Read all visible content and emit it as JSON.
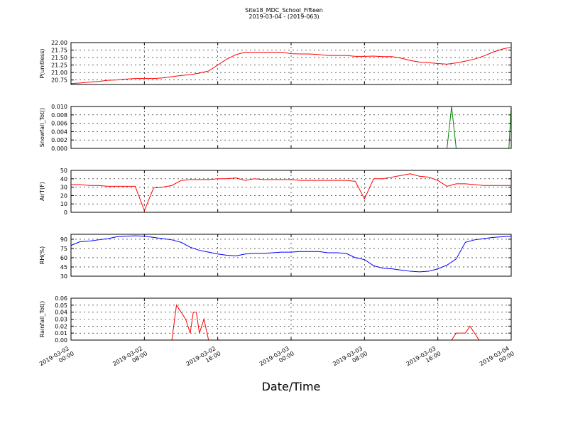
{
  "title": "Site18_MDC_School_Fifteen",
  "subtitle": "2019-03-04 - (2019-063)",
  "xlabel": "Date/Time",
  "chart_data": [
    {
      "type": "line",
      "ylabel": "P(unitless)",
      "color": "#ff0000",
      "grid": true,
      "xlim": [
        "2019-03-02 00:00",
        "2019-03-04 00:00"
      ],
      "ylim": [
        20.6,
        22.0
      ],
      "yticks": [
        20.75,
        {
          "value": 21.0,
          "label": "21.00"
        },
        21.25,
        {
          "value": 21.5,
          "label": "21.50"
        },
        21.75,
        {
          "value": 22.0,
          "label": "22.00"
        }
      ],
      "x": [
        "2019-03-02 00:00",
        "2019-03-02 01:00",
        "2019-03-02 02:00",
        "2019-03-02 03:00",
        "2019-03-02 04:00",
        "2019-03-02 05:00",
        "2019-03-02 06:00",
        "2019-03-02 07:00",
        "2019-03-02 08:00",
        "2019-03-02 09:00",
        "2019-03-02 10:00",
        "2019-03-02 11:00",
        "2019-03-02 12:00",
        "2019-03-02 13:00",
        "2019-03-02 14:00",
        "2019-03-02 15:00",
        "2019-03-02 16:00",
        "2019-03-02 17:00",
        "2019-03-02 18:00",
        "2019-03-02 19:00",
        "2019-03-02 20:00",
        "2019-03-02 21:00",
        "2019-03-02 22:00",
        "2019-03-02 23:00",
        "2019-03-03 00:00",
        "2019-03-03 01:00",
        "2019-03-03 02:00",
        "2019-03-03 03:00",
        "2019-03-03 04:00",
        "2019-03-03 05:00",
        "2019-03-03 06:00",
        "2019-03-03 07:00",
        "2019-03-03 08:00",
        "2019-03-03 09:00",
        "2019-03-03 10:00",
        "2019-03-03 11:00",
        "2019-03-03 12:00",
        "2019-03-03 13:00",
        "2019-03-03 14:00",
        "2019-03-03 15:00",
        "2019-03-03 16:00",
        "2019-03-03 17:00",
        "2019-03-03 18:00",
        "2019-03-03 19:00",
        "2019-03-03 20:00",
        "2019-03-03 21:00",
        "2019-03-03 22:00",
        "2019-03-03 23:00",
        "2019-03-04 00:00"
      ],
      "values": [
        20.63,
        20.65,
        20.68,
        20.7,
        20.74,
        20.75,
        20.78,
        20.8,
        20.8,
        20.8,
        20.82,
        20.86,
        20.9,
        20.93,
        20.98,
        21.05,
        21.25,
        21.45,
        21.6,
        21.68,
        21.68,
        21.68,
        21.68,
        21.68,
        21.63,
        21.62,
        21.62,
        21.6,
        21.57,
        21.57,
        21.57,
        21.54,
        21.54,
        21.55,
        21.53,
        21.53,
        21.48,
        21.4,
        21.35,
        21.33,
        21.3,
        21.28,
        21.32,
        21.38,
        21.45,
        21.55,
        21.68,
        21.78,
        21.85
      ]
    },
    {
      "type": "line",
      "ylabel": "Snowfall_Tot()",
      "color": "#008000",
      "grid": true,
      "xlim": [
        "2019-03-02 00:00",
        "2019-03-04 00:00"
      ],
      "ylim": [
        0,
        0.01
      ],
      "yticks": [
        {
          "value": 0,
          "label": "0.000"
        },
        {
          "value": 0.002,
          "label": "0.002"
        },
        {
          "value": 0.004,
          "label": "0.004"
        },
        {
          "value": 0.006,
          "label": "0.006"
        },
        {
          "value": 0.008,
          "label": "0.008"
        },
        {
          "value": 0.01,
          "label": "0.010"
        }
      ],
      "x": [
        "2019-03-02 00:00",
        "2019-03-03 17:00",
        "2019-03-03 17:30",
        "2019-03-03 18:00",
        "2019-03-03 23:45",
        "2019-03-04 00:00"
      ],
      "values": [
        0,
        0,
        0.01,
        0,
        0,
        0.01
      ]
    },
    {
      "type": "line",
      "ylabel": "AirT(F)",
      "color": "#ff0000",
      "grid": true,
      "xlim": [
        "2019-03-02 00:00",
        "2019-03-04 00:00"
      ],
      "ylim": [
        0,
        50
      ],
      "yticks": [
        0,
        10,
        20,
        30,
        40,
        50
      ],
      "x": [
        "2019-03-02 00:00",
        "2019-03-02 01:00",
        "2019-03-02 02:00",
        "2019-03-02 03:00",
        "2019-03-02 04:00",
        "2019-03-02 05:00",
        "2019-03-02 06:00",
        "2019-03-02 07:00",
        "2019-03-02 08:00",
        "2019-03-02 09:00",
        "2019-03-02 10:00",
        "2019-03-02 11:00",
        "2019-03-02 12:00",
        "2019-03-02 13:00",
        "2019-03-02 14:00",
        "2019-03-02 15:00",
        "2019-03-02 16:00",
        "2019-03-02 17:00",
        "2019-03-02 18:00",
        "2019-03-02 19:00",
        "2019-03-02 20:00",
        "2019-03-02 21:00",
        "2019-03-02 22:00",
        "2019-03-02 23:00",
        "2019-03-03 00:00",
        "2019-03-03 01:00",
        "2019-03-03 02:00",
        "2019-03-03 03:00",
        "2019-03-03 04:00",
        "2019-03-03 05:00",
        "2019-03-03 06:00",
        "2019-03-03 07:00",
        "2019-03-03 08:00",
        "2019-03-03 09:00",
        "2019-03-03 10:00",
        "2019-03-03 11:00",
        "2019-03-03 12:00",
        "2019-03-03 13:00",
        "2019-03-03 14:00",
        "2019-03-03 15:00",
        "2019-03-03 16:00",
        "2019-03-03 17:00",
        "2019-03-03 18:00",
        "2019-03-03 19:00",
        "2019-03-03 20:00",
        "2019-03-03 21:00",
        "2019-03-03 22:00",
        "2019-03-03 23:00",
        "2019-03-04 00:00"
      ],
      "values": [
        33,
        33,
        32,
        32,
        31,
        31,
        31,
        31,
        2,
        29,
        30,
        32,
        38,
        39,
        39,
        39,
        40,
        40,
        41,
        38,
        40,
        39,
        39,
        39,
        39,
        38,
        38,
        38,
        38,
        38,
        38,
        37,
        16,
        40,
        40,
        42,
        44,
        46,
        43,
        42,
        38,
        31,
        34,
        34,
        33,
        32,
        32,
        32,
        32
      ]
    },
    {
      "type": "line",
      "ylabel": "RH(%)",
      "color": "#0000ff",
      "grid": true,
      "xlim": [
        "2019-03-02 00:00",
        "2019-03-04 00:00"
      ],
      "ylim": [
        30,
        98
      ],
      "yticks": [
        30,
        45,
        60,
        75,
        90
      ],
      "x": [
        "2019-03-02 00:00",
        "2019-03-02 01:00",
        "2019-03-02 02:00",
        "2019-03-02 03:00",
        "2019-03-02 04:00",
        "2019-03-02 05:00",
        "2019-03-02 06:00",
        "2019-03-02 07:00",
        "2019-03-02 08:00",
        "2019-03-02 09:00",
        "2019-03-02 10:00",
        "2019-03-02 11:00",
        "2019-03-02 12:00",
        "2019-03-02 13:00",
        "2019-03-02 14:00",
        "2019-03-02 15:00",
        "2019-03-02 16:00",
        "2019-03-02 17:00",
        "2019-03-02 18:00",
        "2019-03-02 19:00",
        "2019-03-02 20:00",
        "2019-03-02 21:00",
        "2019-03-02 22:00",
        "2019-03-02 23:00",
        "2019-03-03 00:00",
        "2019-03-03 01:00",
        "2019-03-03 02:00",
        "2019-03-03 03:00",
        "2019-03-03 04:00",
        "2019-03-03 05:00",
        "2019-03-03 06:00",
        "2019-03-03 07:00",
        "2019-03-03 08:00",
        "2019-03-03 09:00",
        "2019-03-03 10:00",
        "2019-03-03 11:00",
        "2019-03-03 12:00",
        "2019-03-03 13:00",
        "2019-03-03 14:00",
        "2019-03-03 15:00",
        "2019-03-03 16:00",
        "2019-03-03 17:00",
        "2019-03-03 18:00",
        "2019-03-03 19:00",
        "2019-03-03 20:00",
        "2019-03-03 21:00",
        "2019-03-03 22:00",
        "2019-03-03 23:00",
        "2019-03-04 00:00"
      ],
      "values": [
        80,
        86,
        87,
        89,
        91,
        94,
        95,
        95.5,
        95,
        93,
        91,
        89,
        85,
        77,
        72,
        69,
        66,
        64,
        63,
        66,
        67,
        67,
        68,
        69,
        69,
        70,
        70,
        70,
        68,
        68,
        67,
        60,
        57,
        47,
        43,
        42,
        40,
        38,
        37,
        38,
        42,
        48,
        58,
        85,
        89,
        91,
        93,
        94,
        95
      ]
    },
    {
      "type": "line",
      "ylabel": "Rainfall_Tot()",
      "color": "#ff0000",
      "grid": true,
      "xlim": [
        "2019-03-02 00:00",
        "2019-03-04 00:00"
      ],
      "ylim": [
        0,
        0.06
      ],
      "yticks": [
        {
          "value": 0,
          "label": "0.00"
        },
        0.01,
        0.02,
        0.03,
        0.04,
        0.05,
        0.06
      ],
      "xticks": [
        "2019-03-02 00:00",
        "2019-03-02 08:00",
        "2019-03-02 16:00",
        "2019-03-03 00:00",
        "2019-03-03 08:00",
        "2019-03-03 16:00",
        "2019-03-04 00:00"
      ],
      "x": [
        "2019-03-02 00:00",
        "2019-03-02 11:00",
        "2019-03-02 11:30",
        "2019-03-02 12:30",
        "2019-03-02 13:00",
        "2019-03-02 13:20",
        "2019-03-02 13:40",
        "2019-03-02 14:00",
        "2019-03-02 14:30",
        "2019-03-02 15:00",
        "2019-03-03 17:30",
        "2019-03-03 18:00",
        "2019-03-03 19:00",
        "2019-03-03 19:30",
        "2019-03-03 20:00",
        "2019-03-03 20:30",
        "2019-03-04 00:00"
      ],
      "values": [
        0,
        0,
        0.05,
        0.03,
        0.01,
        0.04,
        0.04,
        0.01,
        0.03,
        0,
        0,
        0.01,
        0.01,
        0.02,
        0.01,
        0,
        0
      ]
    }
  ]
}
